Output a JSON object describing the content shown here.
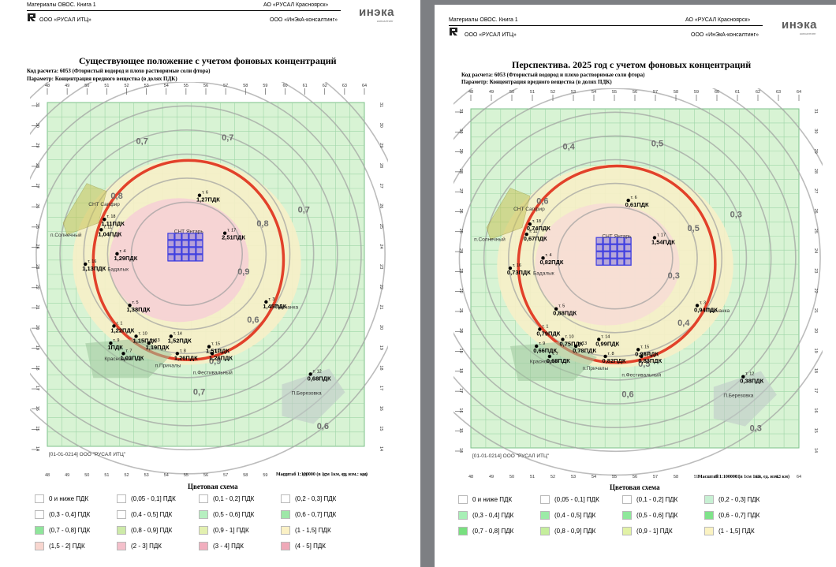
{
  "left": {
    "header": {
      "doc": "Материалы ОВОС. Книга 1",
      "org_right": "АО «РУСАЛ Красноярск»",
      "org_left": "ООО «РУСАЛ ИТЦ»",
      "consult": "ООО «ИнЭкА-консалтинг»",
      "logo": "инэка",
      "logo_sub": "консалтинг"
    },
    "map": {
      "title": "Существующее положение с учетом фоновых концентраций",
      "code_line": "Код расчета: 6053 (Фтористый водород и плохо растворимые соли фтора)",
      "param_line": "Параметр: Концентрация вредного вещества (в долях ПДК)",
      "stamp": "[01-01-0214] ООО \"РУСАЛ ИТЦ\"",
      "scale": "Масштаб 1:100000 (в 1см 1км, ед. изм.: км)",
      "places": [
        "СНТ Сапфир",
        "п.Солнечный",
        "СНТ Янтарь",
        "Бадалык",
        "Песчанка",
        "Красноярск",
        "п.Причалы",
        "п.Фестивальный",
        "П.Березовка"
      ],
      "points": [
        {
          "id": "т. 6",
          "value": "1,27ПДК"
        },
        {
          "id": "т. 18",
          "value": "1,11ПДК"
        },
        {
          "id": "т. 11",
          "value": "1,04ПДК"
        },
        {
          "id": "т. 17",
          "value": "2,51ПДК"
        },
        {
          "id": "т. 4",
          "value": "1,29ПДК"
        },
        {
          "id": "т. 16",
          "value": "1,13ПДК"
        },
        {
          "id": "т. 3",
          "value": "1,45ПДК"
        },
        {
          "id": "т. 5",
          "value": "1,38ПДК"
        },
        {
          "id": "т. 1",
          "value": "1,22ПДК"
        },
        {
          "id": "т. 14",
          "value": "1,52ПДК"
        },
        {
          "id": "т. 10",
          "value": "1,15ПДК"
        },
        {
          "id": "т. 13",
          "value": "1,19ПДК"
        },
        {
          "id": "т. 15",
          "value": "1,51ПДК"
        },
        {
          "id": "т. 9",
          "value": "1ПДК"
        },
        {
          "id": "т. 7",
          "value": "1,03ПДК"
        },
        {
          "id": "т. 8",
          "value": "1,26ПДК"
        },
        {
          "id": "т. 2",
          "value": "1,26ПДК"
        },
        {
          "id": "т. 12",
          "value": "0,68ПДК"
        }
      ],
      "isolines": [
        "0,7",
        "0,7",
        "0,8",
        "0,8",
        "0,9",
        "0,9",
        "0,7",
        "0,6",
        "0,7",
        "0,6"
      ]
    },
    "legend": {
      "title": "Цветовая схема",
      "items": [
        {
          "label": "0 и ниже ПДК",
          "color": "#ffffff"
        },
        {
          "label": "(0,05 - 0,1] ПДК",
          "color": "#ffffff"
        },
        {
          "label": "(0,1 - 0,2] ПДК",
          "color": "#ffffff"
        },
        {
          "label": "(0,2 - 0,3] ПДК",
          "color": "#ffffff"
        },
        {
          "label": "(0,3 - 0,4] ПДК",
          "color": "#ffffff"
        },
        {
          "label": "(0,4 - 0,5] ПДК",
          "color": "#ffffff"
        },
        {
          "label": "(0,5 - 0,6] ПДК",
          "color": "#b6efc0"
        },
        {
          "label": "(0,6 - 0,7] ПДК",
          "color": "#9ee7a8"
        },
        {
          "label": "(0,7 - 0,8] ПДК",
          "color": "#8fe59b"
        },
        {
          "label": "(0,8 - 0,9] ПДК",
          "color": "#cdeaa8"
        },
        {
          "label": "(0,9 - 1] ПДК",
          "color": "#e3f0b0"
        },
        {
          "label": "(1 - 1,5] ПДК",
          "color": "#fbf1c5"
        },
        {
          "label": "(1,5 - 2] ПДК",
          "color": "#f8d6cf"
        },
        {
          "label": "(2 - 3] ПДК",
          "color": "#f4c0cb"
        },
        {
          "label": "(3 - 4] ПДК",
          "color": "#f1aebe"
        },
        {
          "label": "(4 - 5] ПДК",
          "color": "#efa9b8"
        }
      ]
    }
  },
  "right": {
    "header": {
      "doc": "Материалы ОВОС. Книга 1",
      "org_right": "АО «РУСАЛ Красноярск»",
      "org_left": "ООО «РУСАЛ ИТЦ»",
      "consult": "ООО «ИнЭкА-консалтинг»",
      "logo": "инэка",
      "logo_sub": "консалтинг"
    },
    "map": {
      "title": "Перспектива. 2025 год с учетом фоновых концентраций",
      "code_line": "Код расчета: 6053 (Фтористый водород и плохо растворимые соли фтора)",
      "param_line": "Параметр: Концентрация вредного вещества (в долях ПДК)",
      "stamp": "[01-01-0214] ООО \"РУСАЛ ИТЦ\"",
      "scale": "Масштаб 1:100000 (в 1см 1км, ед. изм.: км)",
      "places": [
        "СНТ Сапфир",
        "п.Солнечный",
        "СНТ Янтарь",
        "Бадалык",
        "Песчанка",
        "Красноярск",
        "п.Причалы",
        "п.Фестивальный",
        "П.Березовка"
      ],
      "points": [
        {
          "id": "т. 6",
          "value": "0,61ПДК"
        },
        {
          "id": "т. 18",
          "value": "0,74ПДК"
        },
        {
          "id": "т. 11",
          "value": "0,67ПДК"
        },
        {
          "id": "т. 17",
          "value": "1,54ПДК"
        },
        {
          "id": "т. 4",
          "value": "0,82ПДК"
        },
        {
          "id": "т. 16",
          "value": "0,73ПДК"
        },
        {
          "id": "т. 3",
          "value": "0,94ПДК"
        },
        {
          "id": "т. 5",
          "value": "0,88ПДК"
        },
        {
          "id": "т. 1",
          "value": "0,79ПДК"
        },
        {
          "id": "т. 14",
          "value": "0,99ПДК"
        },
        {
          "id": "т. 10",
          "value": "0,75ПДК"
        },
        {
          "id": "т. 13",
          "value": "0,78ПДК"
        },
        {
          "id": "т. 15",
          "value": "0,98ПДК"
        },
        {
          "id": "т. 9",
          "value": "0,66ПДК"
        },
        {
          "id": "т. 7",
          "value": "0,68ПДК"
        },
        {
          "id": "т. 8",
          "value": "0,82ПДК"
        },
        {
          "id": "т. 2",
          "value": "0,83ПДК"
        },
        {
          "id": "т. 12",
          "value": "0,38ПДК"
        }
      ],
      "isolines": [
        "0,4",
        "0,5",
        "0,6",
        "0,5",
        "0,3",
        "0,5",
        "0,6",
        "0,4",
        "0,3",
        "0,3"
      ]
    },
    "legend": {
      "title": "Цветовая схема",
      "items": [
        {
          "label": "0 и ниже ПДК",
          "color": "#ffffff"
        },
        {
          "label": "(0,05 - 0,1] ПДК",
          "color": "#ffffff"
        },
        {
          "label": "(0,1 - 0,2] ПДК",
          "color": "#ffffff"
        },
        {
          "label": "(0,2 - 0,3] ПДК",
          "color": "#c7f0d3"
        },
        {
          "label": "(0,3 - 0,4] ПДК",
          "color": "#a8efb6"
        },
        {
          "label": "(0,4 - 0,5] ПДК",
          "color": "#9ceba7"
        },
        {
          "label": "(0,5 - 0,6] ПДК",
          "color": "#8fe89b"
        },
        {
          "label": "(0,6 - 0,7] ПДК",
          "color": "#7fe38a"
        },
        {
          "label": "(0,7 - 0,8] ПДК",
          "color": "#78e07f"
        },
        {
          "label": "(0,8 - 0,9] ПДК",
          "color": "#c5ee9c"
        },
        {
          "label": "(0,9 - 1] ПДК",
          "color": "#e2f2a6"
        },
        {
          "label": "(1 - 1,5] ПДК",
          "color": "#fbf3c2"
        }
      ]
    }
  },
  "axes": {
    "x_ticks": [
      "48",
      "49",
      "50",
      "51",
      "52",
      "53",
      "54",
      "55",
      "56",
      "57",
      "58",
      "59",
      "60",
      "61",
      "62",
      "63",
      "64"
    ],
    "y_ticks": [
      "31",
      "30",
      "29",
      "28",
      "27",
      "26",
      "25",
      "24",
      "23",
      "22",
      "21",
      "20",
      "19",
      "18",
      "17",
      "16",
      "15",
      "14"
    ]
  },
  "colors": {
    "grid_fill": "#d8f3d4",
    "grid_line": "#9fd6a8",
    "ring": "#e2412a",
    "isoline": "#a0a0a0",
    "plant": "#3f3fe0"
  }
}
